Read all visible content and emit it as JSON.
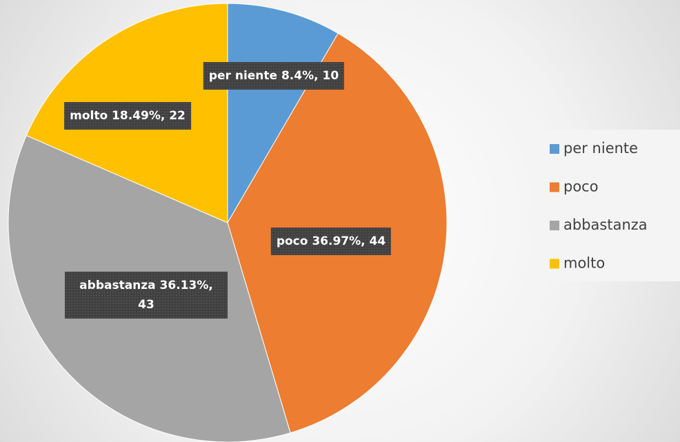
{
  "chart_data": {
    "type": "pie",
    "categories": [
      "per niente",
      "poco",
      "abbastanza",
      "molto"
    ],
    "values": [
      10,
      44,
      43,
      22
    ],
    "value_labels": [
      "per niente 8.4%, 10",
      "poco 36.97%, 44",
      "abbastanza 36.13%, 43",
      "molto 18.49%, 22"
    ],
    "colors": [
      "#5b9bd5",
      "#ed7d31",
      "#a5a5a5",
      "#ffc000"
    ],
    "legend": "right"
  }
}
